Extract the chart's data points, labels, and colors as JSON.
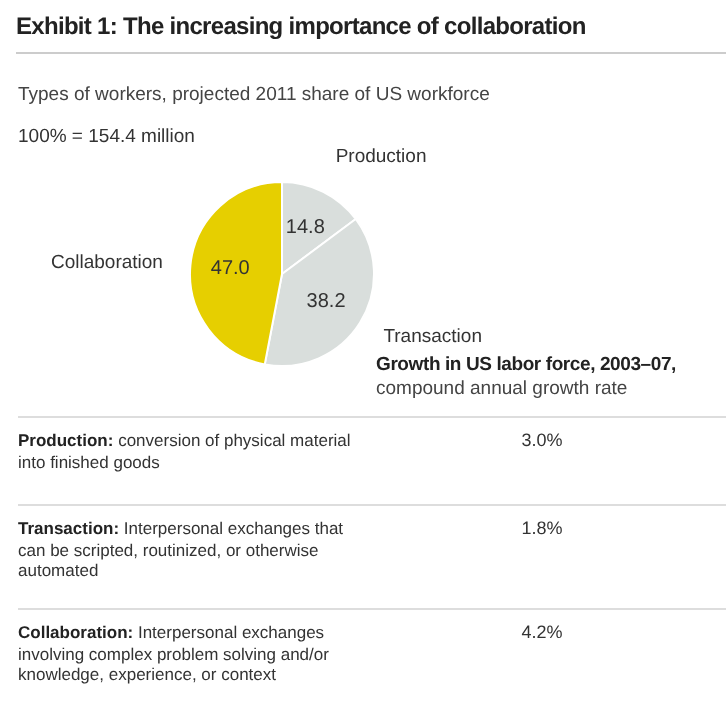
{
  "chart_data": [
    {
      "type": "pie",
      "title": "Exhibit 1: The increasing importance of collaboration",
      "subtitle": "Types of workers, projected 2011 share of US workforce",
      "annotations": [
        "100% = 154.4 million"
      ],
      "categories": [
        "Production",
        "Transaction",
        "Collaboration"
      ],
      "values": [
        14.8,
        38.2,
        47.0
      ],
      "colors": [
        "#d9dedc",
        "#d9dedc",
        "#e6cf00"
      ],
      "value_labels": [
        "14.8",
        "38.2",
        "47.0"
      ],
      "legend": false
    },
    {
      "type": "other",
      "title": "Growth in US labor force, 2003–07,",
      "subtitle": "compound annual growth rate",
      "categories": [
        "Production: conversion of physical material into finished goods",
        "Transaction: Interpersonal exchanges that can be scripted, routinized, or otherwise automated",
        "Collaboration: Interpersonal exchanges involving complex problem solving and/or knowledge, experience, or context"
      ],
      "values": [
        3.0,
        1.8,
        4.2
      ],
      "value_labels": [
        "3.0%",
        "1.8%",
        "4.2%"
      ]
    }
  ]
}
